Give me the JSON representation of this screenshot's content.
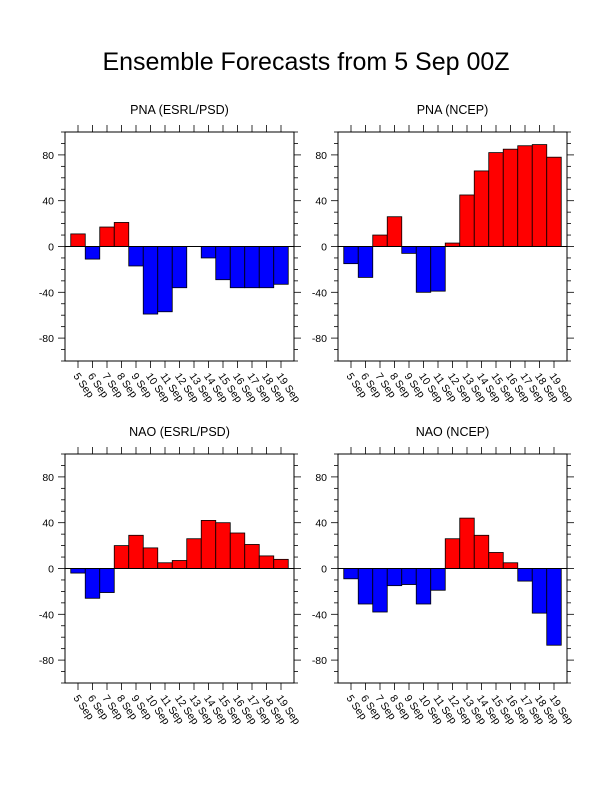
{
  "title": "Ensemble Forecasts from 5 Sep 00Z",
  "colors": {
    "positive": "#ff0000",
    "negative": "#0000ff",
    "axis": "#000000"
  },
  "chart_data": [
    {
      "type": "bar",
      "title": "PNA (ESRL/PSD)",
      "categories": [
        "5 Sep",
        "6 Sep",
        "7 Sep",
        "8 Sep",
        "9 Sep",
        "10 Sep",
        "11 Sep",
        "12 Sep",
        "13 Sep",
        "14 Sep",
        "15 Sep",
        "16 Sep",
        "17 Sep",
        "18 Sep",
        "19 Sep"
      ],
      "values": [
        11,
        -11,
        17,
        21,
        -17,
        -59,
        -57,
        -36,
        0,
        -10,
        -29,
        -36,
        -36,
        -36,
        -33
      ],
      "ylim": [
        -100,
        100
      ],
      "yticks": [
        -80,
        -40,
        0,
        40,
        80
      ],
      "ytick_labels": [
        "-80",
        "-40",
        "0",
        "40",
        "80"
      ]
    },
    {
      "type": "bar",
      "title": "PNA (NCEP)",
      "categories": [
        "5 Sep",
        "6 Sep",
        "7 Sep",
        "8 Sep",
        "9 Sep",
        "10 Sep",
        "11 Sep",
        "12 Sep",
        "13 Sep",
        "14 Sep",
        "15 Sep",
        "16 Sep",
        "17 Sep",
        "18 Sep",
        "19 Sep"
      ],
      "values": [
        -15,
        -27,
        10,
        26,
        -6,
        -40,
        -39,
        3,
        45,
        66,
        82,
        85,
        88,
        89,
        78
      ],
      "ylim": [
        -100,
        100
      ],
      "yticks": [
        -80,
        -40,
        0,
        40,
        80
      ],
      "ytick_labels": [
        "-80",
        "-40",
        "0",
        "40",
        "80"
      ]
    },
    {
      "type": "bar",
      "title": "NAO (ESRL/PSD)",
      "categories": [
        "5 Sep",
        "6 Sep",
        "7 Sep",
        "8 Sep",
        "9 Sep",
        "10 Sep",
        "11 Sep",
        "12 Sep",
        "13 Sep",
        "14 Sep",
        "15 Sep",
        "16 Sep",
        "17 Sep",
        "18 Sep",
        "19 Sep"
      ],
      "values": [
        -4,
        -26,
        -21,
        20,
        29,
        18,
        5,
        7,
        26,
        42,
        40,
        31,
        21,
        11,
        8
      ],
      "ylim": [
        -100,
        100
      ],
      "yticks": [
        -80,
        -40,
        0,
        40,
        80
      ],
      "ytick_labels": [
        "-80",
        "-40",
        "0",
        "40",
        "80"
      ]
    },
    {
      "type": "bar",
      "title": "NAO (NCEP)",
      "categories": [
        "5 Sep",
        "6 Sep",
        "7 Sep",
        "8 Sep",
        "9 Sep",
        "10 Sep",
        "11 Sep",
        "12 Sep",
        "13 Sep",
        "14 Sep",
        "15 Sep",
        "16 Sep",
        "17 Sep",
        "18 Sep",
        "19 Sep"
      ],
      "values": [
        -9,
        -31,
        -38,
        -15,
        -14,
        -31,
        -19,
        26,
        44,
        29,
        14,
        5,
        -11,
        -39,
        -67
      ],
      "ylim": [
        -100,
        100
      ],
      "yticks": [
        -80,
        -40,
        0,
        40,
        80
      ],
      "ytick_labels": [
        "-80",
        "-40",
        "0",
        "40",
        "80"
      ]
    }
  ]
}
